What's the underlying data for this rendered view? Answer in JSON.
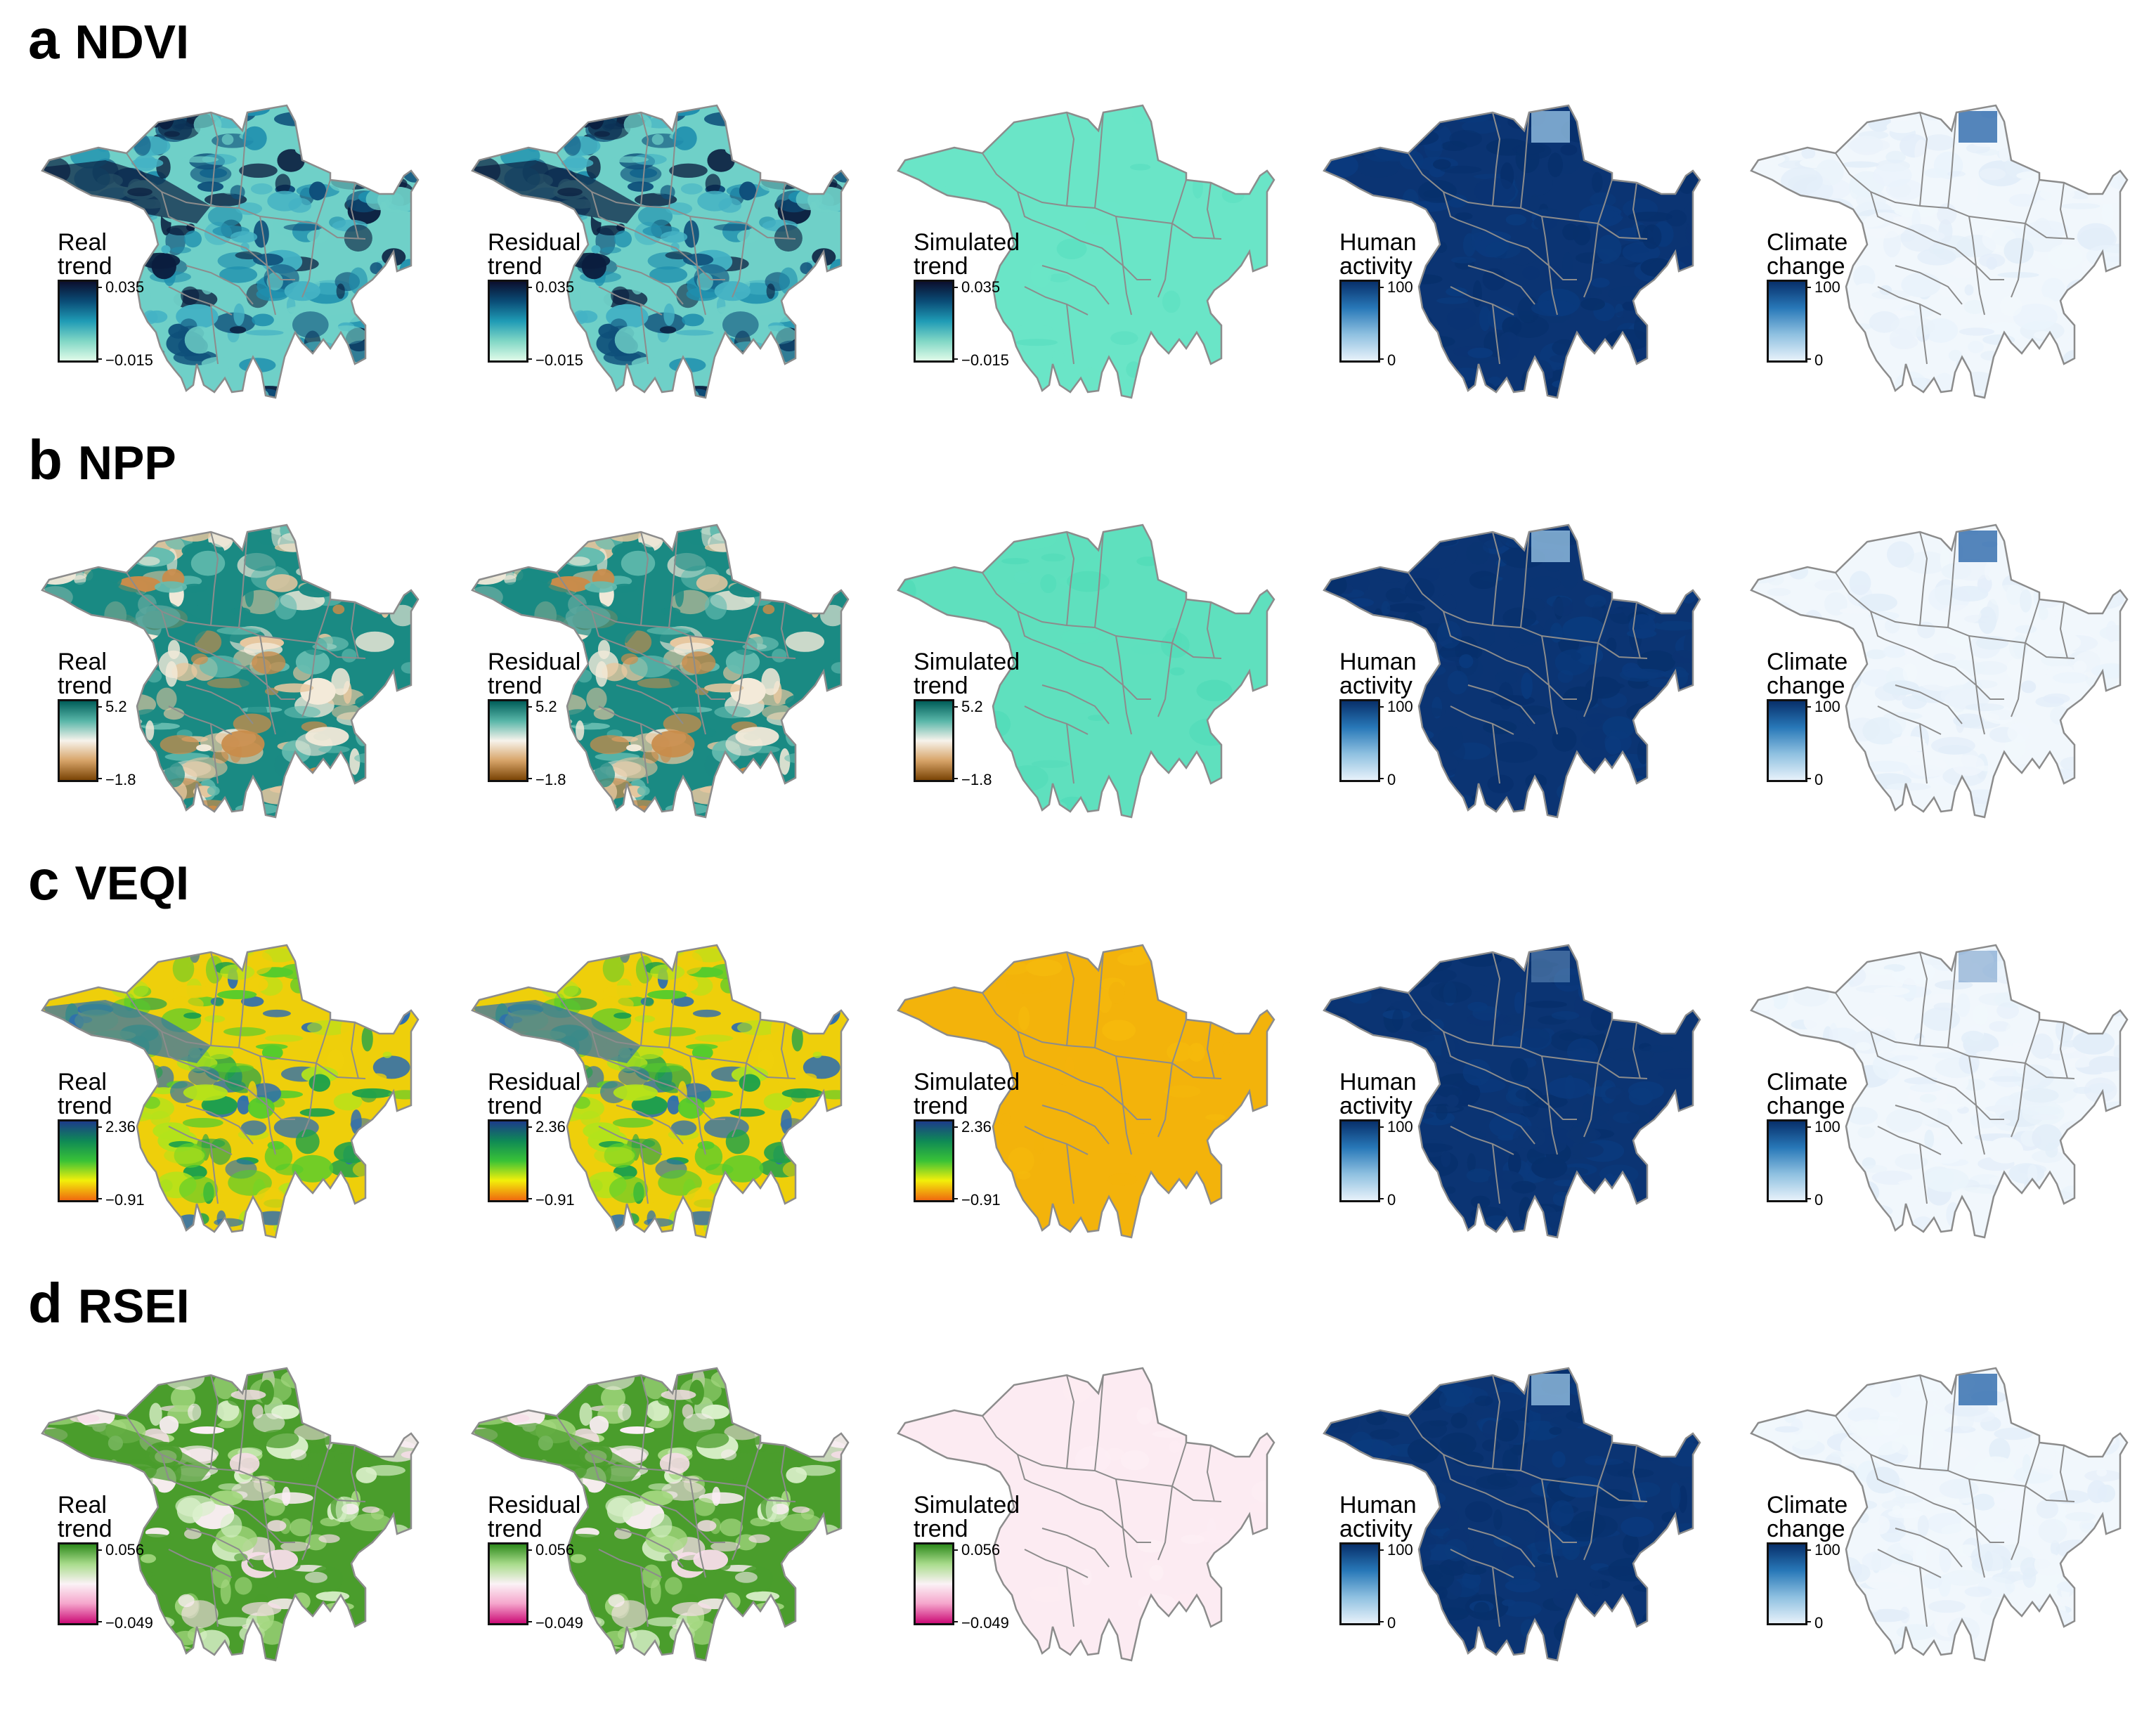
{
  "rows": [
    {
      "letter": "a",
      "name": "NDVI",
      "panels": [
        {
          "title": [
            "Real",
            "trend"
          ],
          "max": "0.035",
          "min": "−0.015",
          "scale": "ndvi",
          "fill": "ndvi-real"
        },
        {
          "title": [
            "Residual",
            "trend"
          ],
          "max": "0.035",
          "min": "−0.015",
          "scale": "ndvi",
          "fill": "ndvi-real"
        },
        {
          "title": [
            "Simulated",
            "trend"
          ],
          "max": "0.035",
          "min": "−0.015",
          "scale": "ndvi",
          "fill": "ndvi-sim"
        },
        {
          "title": [
            "Human",
            "activity"
          ],
          "max": "100",
          "min": "0",
          "scale": "blue",
          "fill": "human"
        },
        {
          "title": [
            "Climate",
            "change"
          ],
          "max": "100",
          "min": "0",
          "scale": "blue",
          "fill": "climate"
        }
      ]
    },
    {
      "letter": "b",
      "name": "NPP",
      "panels": [
        {
          "title": [
            "Real",
            "trend"
          ],
          "max": "5.2",
          "min": "−1.8",
          "scale": "npp",
          "fill": "npp-real"
        },
        {
          "title": [
            "Residual",
            "trend"
          ],
          "max": "5.2",
          "min": "−1.8",
          "scale": "npp",
          "fill": "npp-real"
        },
        {
          "title": [
            "Simulated",
            "trend"
          ],
          "max": "5.2",
          "min": "−1.8",
          "scale": "npp",
          "fill": "npp-sim"
        },
        {
          "title": [
            "Human",
            "activity"
          ],
          "max": "100",
          "min": "0",
          "scale": "blue",
          "fill": "human"
        },
        {
          "title": [
            "Climate",
            "change"
          ],
          "max": "100",
          "min": "0",
          "scale": "blue",
          "fill": "climate"
        }
      ]
    },
    {
      "letter": "c",
      "name": "VEQI",
      "panels": [
        {
          "title": [
            "Real",
            "trend"
          ],
          "max": "2.36",
          "min": "−0.91",
          "scale": "veqi",
          "fill": "veqi-real"
        },
        {
          "title": [
            "Residual",
            "trend"
          ],
          "max": "2.36",
          "min": "−0.91",
          "scale": "veqi",
          "fill": "veqi-real"
        },
        {
          "title": [
            "Simulated",
            "trend"
          ],
          "max": "2.36",
          "min": "−0.91",
          "scale": "veqi",
          "fill": "veqi-sim"
        },
        {
          "title": [
            "Human",
            "activity"
          ],
          "max": "100",
          "min": "0",
          "scale": "blue",
          "fill": "human"
        },
        {
          "title": [
            "Climate",
            "change"
          ],
          "max": "100",
          "min": "0",
          "scale": "blue",
          "fill": "climate"
        }
      ]
    },
    {
      "letter": "d",
      "name": "RSEI",
      "panels": [
        {
          "title": [
            "Real",
            "trend"
          ],
          "max": "0.056",
          "min": "−0.049",
          "scale": "rsei",
          "fill": "rsei-real"
        },
        {
          "title": [
            "Residual",
            "trend"
          ],
          "max": "0.056",
          "min": "−0.049",
          "scale": "rsei",
          "fill": "rsei-real"
        },
        {
          "title": [
            "Simulated",
            "trend"
          ],
          "max": "0.056",
          "min": "−0.049",
          "scale": "rsei",
          "fill": "rsei-sim"
        },
        {
          "title": [
            "Human",
            "activity"
          ],
          "max": "100",
          "min": "0",
          "scale": "blue",
          "fill": "human"
        },
        {
          "title": [
            "Climate",
            "change"
          ],
          "max": "100",
          "min": "0",
          "scale": "blue",
          "fill": "climate"
        }
      ]
    }
  ],
  "colors": {
    "ndvi": [
      "#0b0f2e",
      "#0a4d77",
      "#1f9bb5",
      "#7fd6c5",
      "#e0fbe8"
    ],
    "npp": [
      "#015e5a",
      "#58b6a8",
      "#f7f3ec",
      "#d8a56a",
      "#7a4405"
    ],
    "veqi": [
      "#1c3c8a",
      "#0f8a55",
      "#39c237",
      "#f2f00a",
      "#f06a0f"
    ],
    "rsei": [
      "#2e8a1c",
      "#a9dc8c",
      "#fbf2f6",
      "#f5a6cc",
      "#cc0c76"
    ],
    "blue": [
      "#08306b",
      "#2878b8",
      "#8ec0e0",
      "#e7f1fa"
    ],
    "fills": {
      "ndvi-real": [
        "#0a1d3e",
        "#0e4f7a",
        "#1f8fae",
        "#44b2c4",
        "#6fd0c8"
      ],
      "ndvi-sim": [
        "#5ee0c2",
        "#6ae5c7"
      ],
      "npp-real": [
        "#f3ead9",
        "#e6c79f",
        "#c98c4a",
        "#65bcb0",
        "#1a8a83"
      ],
      "npp-sim": [
        "#53dcb9",
        "#5fe0be"
      ],
      "veqi-real": [
        "#2d6db0",
        "#1fa14a",
        "#55cc2c",
        "#b3e31b",
        "#eecf0b"
      ],
      "veqi-sim": [
        "#f5b90c",
        "#f3b30b"
      ],
      "rsei-real": [
        "#fbeef4",
        "#f7dde9",
        "#d9f0c9",
        "#a3d77f",
        "#4a9d2c"
      ],
      "rsei-sim": [
        "#fdeef4",
        "#fcebf2"
      ],
      "human": [
        "#07306c",
        "#0a3a7d",
        "#0b3473"
      ],
      "climate": [
        "#eaf3fb",
        "#e3eef9",
        "#f1f7fc"
      ]
    },
    "outline": "#8c8c8c"
  }
}
